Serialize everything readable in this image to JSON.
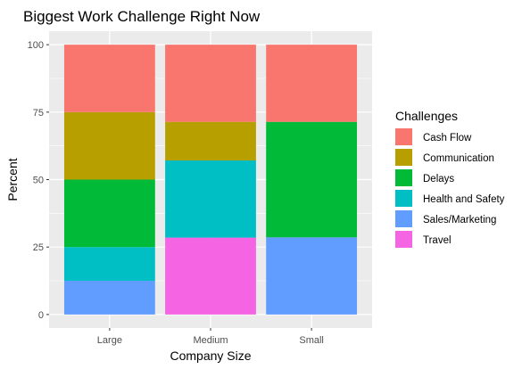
{
  "chart_data": {
    "type": "bar",
    "stacked": true,
    "title": "Biggest Work Challenge Right Now",
    "xlabel": "Company Size",
    "ylabel": "Percent",
    "ylim": [
      0,
      100
    ],
    "yticks": [
      "0",
      "25",
      "50",
      "75",
      "100"
    ],
    "categories": [
      "Large",
      "Medium",
      "Small"
    ],
    "legend_title": "Challenges",
    "legend_position": "right",
    "grid": true,
    "background": "#ebebeb",
    "series": [
      {
        "name": "Cash Flow",
        "color": "#f8766d",
        "values": [
          25,
          28.6,
          28.6
        ]
      },
      {
        "name": "Communication",
        "color": "#b79f00",
        "values": [
          25,
          14.3,
          0
        ]
      },
      {
        "name": "Delays",
        "color": "#00ba38",
        "values": [
          25,
          0,
          42.8
        ]
      },
      {
        "name": "Health and Safety",
        "color": "#00bfc4",
        "values": [
          12.5,
          28.6,
          0
        ]
      },
      {
        "name": "Sales/Marketing",
        "color": "#619cff",
        "values": [
          12.5,
          0,
          28.6
        ]
      },
      {
        "name": "Travel",
        "color": "#f564e3",
        "values": [
          0,
          28.5,
          0
        ]
      }
    ]
  }
}
